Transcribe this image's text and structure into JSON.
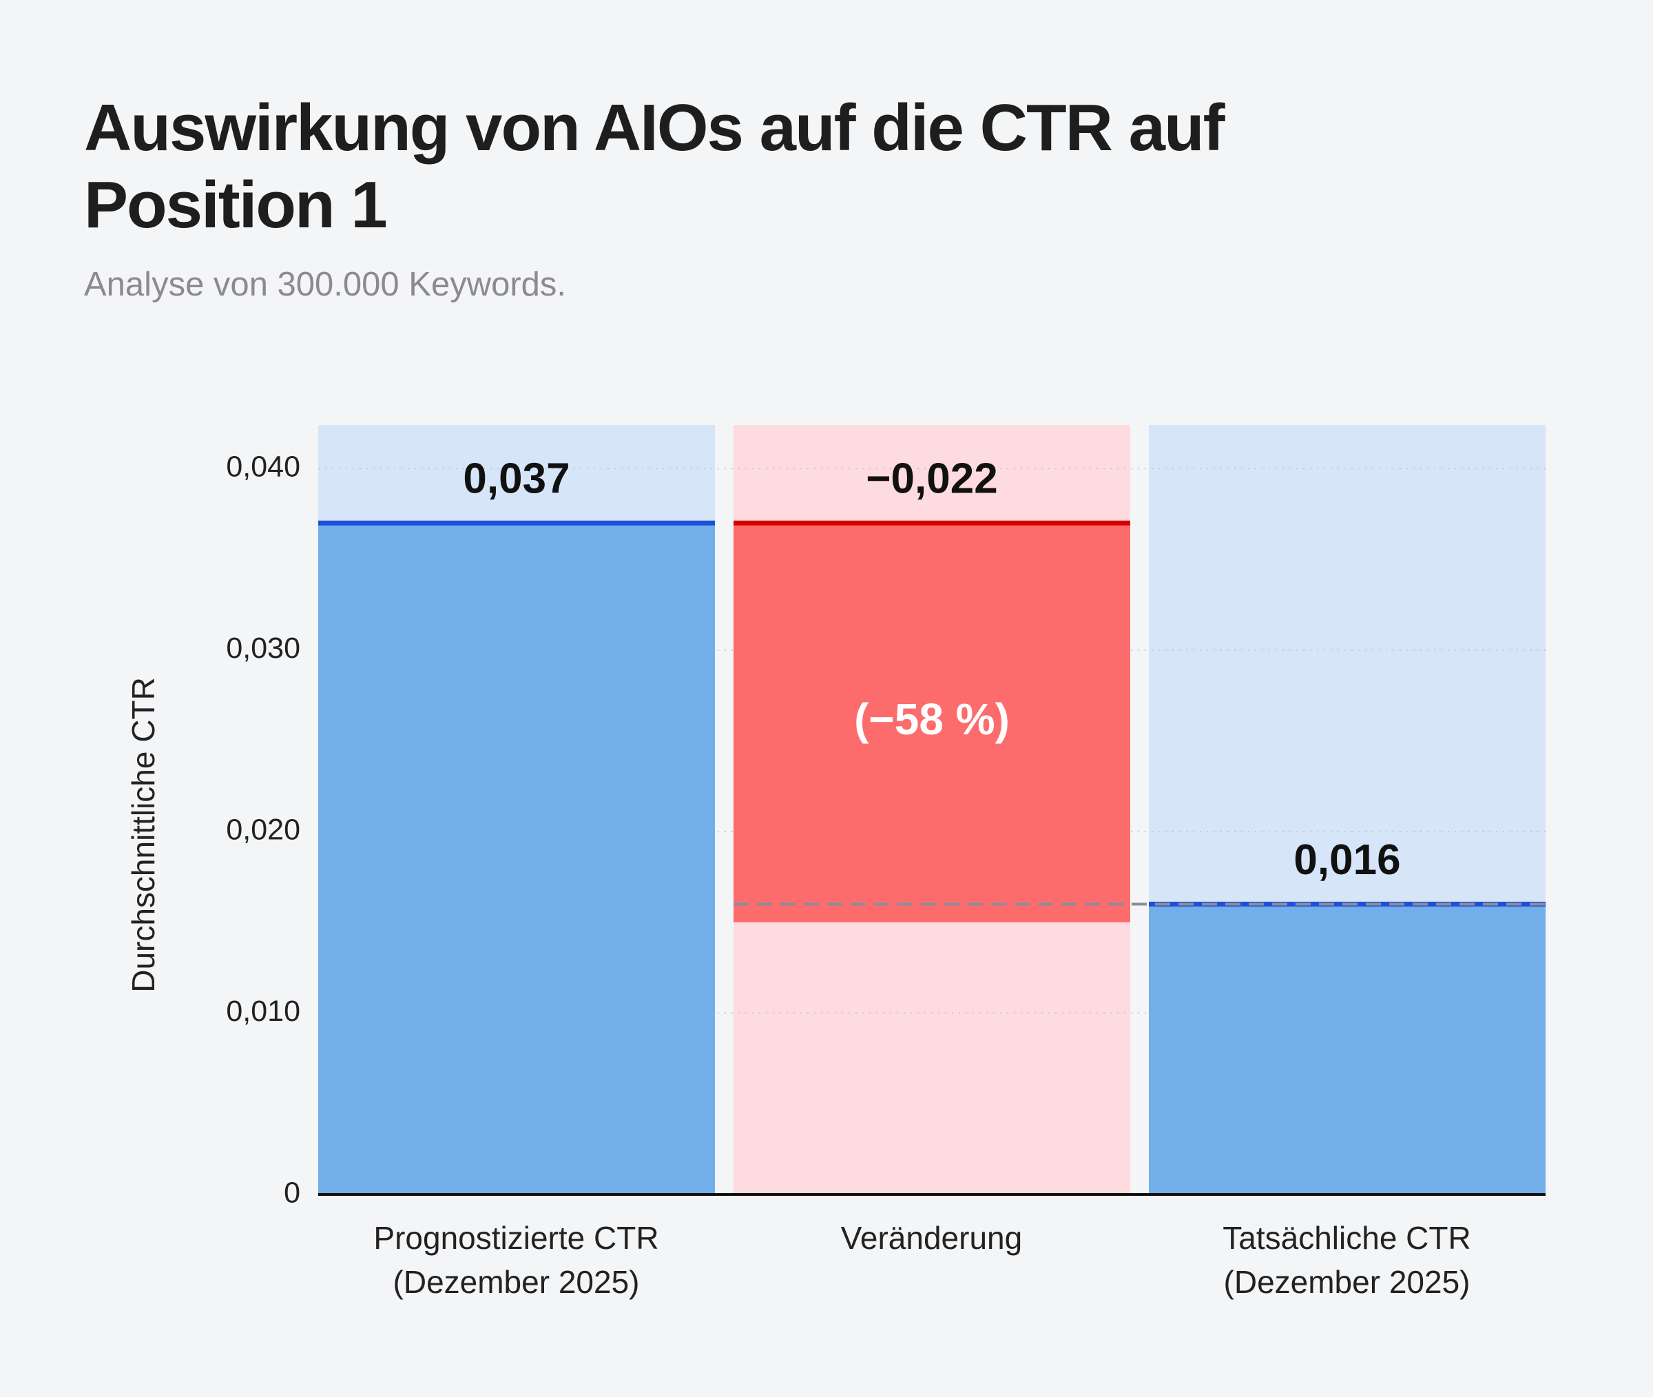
{
  "chart_data": {
    "type": "waterfall",
    "title": "Auswirkung von AIOs auf die CTR auf Position 1",
    "subtitle": "Analyse von 300.000 Keywords.",
    "y_label": "Durchschnittliche CTR",
    "categories": [
      "Prognostizierte CTR\n(Dezember 2025)",
      "Veränderung",
      "Tatsächliche CTR\n(Dezember 2025)"
    ],
    "measures": [
      "absolute",
      "relative",
      "total"
    ],
    "values": [
      0.037,
      -0.022,
      0.016
    ],
    "value_labels": [
      "0,037",
      "−0,022",
      "0,016"
    ],
    "annotation": "(−58 %)",
    "color": "#72aee8",
    "change_color": "#fd6c6c",
    "ylim": [
      0,
      0.0424
    ],
    "yticks": [
      0,
      {
        "value": 0.01,
        "label": "0,010"
      },
      {
        "value": 0.02,
        "label": "0,020"
      },
      {
        "value": 0.03,
        "label": "0,030"
      },
      {
        "value": 0.04,
        "label": "0,040"
      }
    ],
    "grid": true
  }
}
